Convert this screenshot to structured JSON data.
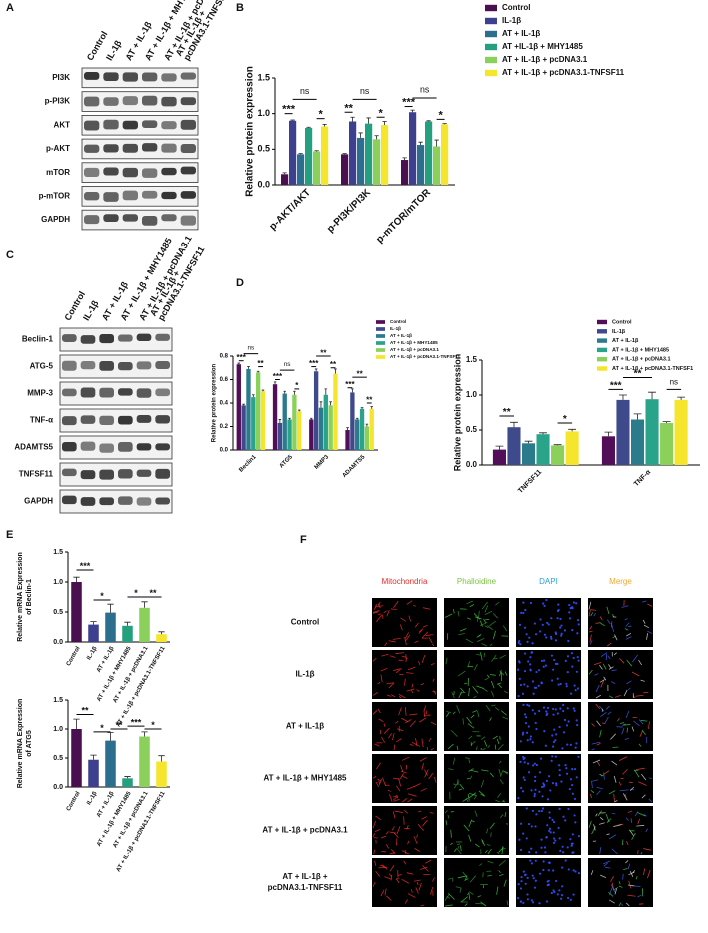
{
  "panel_labels": [
    "A",
    "B",
    "C",
    "D",
    "E",
    "F"
  ],
  "blot_a": {
    "lanes": [
      "Control",
      "IL-1β",
      "AT + IL-1β",
      "AT + IL-1β + MHY1485",
      "AT + IL-1β + pcDNA3.1",
      [
        "AT + IL-1β +",
        "pcDNA3.1-TNFSF11"
      ]
    ],
    "rows": [
      "PI3K",
      "p-PI3K",
      "AKT",
      "p-AKT",
      "mTOR",
      "p-mTOR",
      "GAPDH"
    ]
  },
  "blot_c": {
    "lanes": [
      "Control",
      "IL-1β",
      "AT + IL-1β",
      "AT + IL-1β + MHY1485",
      "AT + IL-1β + pcDNA3.1",
      [
        "AT + IL-1β +",
        "pcDNA3.1-TNFSF11"
      ]
    ],
    "rows": [
      "Beclin-1",
      "ATG-5",
      "MMP-3",
      "TNF-α",
      "ADAMTS5",
      "TNFSF11",
      "GAPDH"
    ]
  },
  "microscopy": {
    "columns": [
      "Mitochondria",
      "Phalloidine",
      "DAPI",
      "Merge"
    ],
    "column_colors": [
      "#e0302a",
      "#7cc242",
      "#2aa0d8",
      "#f0a830"
    ],
    "rows": [
      "Control",
      "IL-1β",
      "AT + IL-1β",
      "AT + IL-1β + MHY1485",
      "AT + IL-1β + pcDNA3.1",
      [
        "AT + IL-1β +",
        "pcDNA3.1-TNFSF11"
      ]
    ]
  },
  "chart_data": [
    {
      "type": "bar",
      "ylabel": "Relative protein expression",
      "categories": [
        "p-AKT/AKT",
        "p-PI3K/PI3K",
        "p-mTOR/mTOR"
      ],
      "series": [
        {
          "name": "Control",
          "color": "#4a0f4f",
          "values": [
            0.15,
            0.43,
            0.35
          ],
          "errors": [
            0.02,
            0.01,
            0.03
          ]
        },
        {
          "name": "IL-1β",
          "color": "#3d3f8f",
          "values": [
            0.9,
            0.89,
            1.02
          ],
          "errors": [
            0.01,
            0.06,
            0.03
          ]
        },
        {
          "name": "AT + IL-1β",
          "color": "#2c6e8e",
          "values": [
            0.43,
            0.66,
            0.56
          ],
          "errors": [
            0.01,
            0.07,
            0.04
          ]
        },
        {
          "name": "AT +IL-1β + MHY1485",
          "color": "#25a07f",
          "values": [
            0.8,
            0.86,
            0.89
          ],
          "errors": [
            0.01,
            0.08,
            0.01
          ]
        },
        {
          "name": "AT + IL-1β + pcDNA3.1",
          "color": "#8bd05a",
          "values": [
            0.47,
            0.64,
            0.54
          ],
          "errors": [
            0.01,
            0.05,
            0.09
          ]
        },
        {
          "name": "AT + IL-1β + pcDNA3.1-TNFSF11",
          "color": "#f5e52c",
          "values": [
            0.82,
            0.84,
            0.85
          ],
          "errors": [
            0.03,
            0.05,
            0.01
          ]
        }
      ],
      "ylim": [
        0,
        1.5
      ],
      "yticks": [
        {
          "value": 0,
          "label": "0.0"
        },
        {
          "value": 0.5,
          "label": "0.5"
        },
        {
          "value": 1,
          "label": "1.0"
        },
        {
          "value": 1.5,
          "label": "1.5"
        }
      ],
      "annotations": [
        "***",
        "ns",
        "*",
        "**",
        "ns",
        "*",
        "***",
        "ns",
        "*"
      ]
    },
    {
      "type": "bar",
      "ylabel": "Relative protein expression",
      "categories": [
        "Beclin1",
        "ATG5",
        "MMP3",
        "ADAMTS5"
      ],
      "series": [
        {
          "name": "Control",
          "color": "#520e58",
          "values": [
            0.73,
            0.56,
            0.26,
            0.17
          ],
          "errors": [
            0.01,
            0.02,
            0.01,
            0.02
          ]
        },
        {
          "name": "IL-1β",
          "color": "#3e4a8c",
          "values": [
            0.38,
            0.23,
            0.67,
            0.49
          ],
          "errors": [
            0.01,
            0.03,
            0.02,
            0.03
          ]
        },
        {
          "name": "AT + IL-1β",
          "color": "#2b7b8c",
          "values": [
            0.69,
            0.48,
            0.36,
            0.26
          ],
          "errors": [
            0.02,
            0.02,
            0.05,
            0.01
          ]
        },
        {
          "name": "AT + IL-1β + MHY1485",
          "color": "#2aa38b",
          "values": [
            0.45,
            0.26,
            0.47,
            0.35
          ],
          "errors": [
            0.02,
            0.01,
            0.05,
            0.01
          ]
        },
        {
          "name": "AT + IL-1β + pcDNA3.1",
          "color": "#8bd05a",
          "values": [
            0.66,
            0.47,
            0.38,
            0.2
          ],
          "errors": [
            0.01,
            0.03,
            0.03,
            0.02
          ]
        },
        {
          "name": "AT + IL-1β + pcDNA3.1-TNFSF11",
          "color": "#f5e52c",
          "values": [
            0.5,
            0.33,
            0.65,
            0.35
          ],
          "errors": [
            0.01,
            0.01,
            0.04,
            0.02
          ]
        }
      ],
      "ylim": [
        0,
        0.8
      ],
      "yticks": [
        {
          "value": 0,
          "label": "0.0"
        },
        {
          "value": 0.2,
          "label": "0.2"
        },
        {
          "value": 0.4,
          "label": "0.4"
        },
        {
          "value": 0.6,
          "label": "0.6"
        },
        {
          "value": 0.8,
          "label": "0.8"
        }
      ],
      "annotations": [
        "***",
        "ns",
        "**",
        "***",
        "ns",
        "*",
        "***",
        "**",
        "**",
        "***",
        "**",
        "**"
      ]
    },
    {
      "type": "bar",
      "ylabel": "Relative protein expression",
      "categories": [
        "TNFSF11",
        "TNF-α"
      ],
      "series": [
        {
          "name": "Control",
          "color": "#520e58",
          "values": [
            0.22,
            0.41
          ],
          "errors": [
            0.05,
            0.06
          ]
        },
        {
          "name": "IL-1β",
          "color": "#3e4a8c",
          "values": [
            0.54,
            0.93
          ],
          "errors": [
            0.07,
            0.07
          ]
        },
        {
          "name": "AT + IL-1β",
          "color": "#2b7b8c",
          "values": [
            0.31,
            0.65
          ],
          "errors": [
            0.03,
            0.08
          ]
        },
        {
          "name": "AT + IL-1β + MHY1485",
          "color": "#2aa38b",
          "values": [
            0.44,
            0.94
          ],
          "errors": [
            0.02,
            0.1
          ]
        },
        {
          "name": "AT + IL-1β + pcDNA3.1",
          "color": "#8bd05a",
          "values": [
            0.28,
            0.6
          ],
          "errors": [
            0.01,
            0.02
          ]
        },
        {
          "name": "AT + IL-1β + pcDNA3.1-TNFSF1",
          "color": "#f5e52c",
          "values": [
            0.48,
            0.93
          ],
          "errors": [
            0.03,
            0.04
          ]
        }
      ],
      "ylim": [
        0,
        1.5
      ],
      "yticks": [
        {
          "value": 0,
          "label": "0.0"
        },
        {
          "value": 0.5,
          "label": "0.5"
        },
        {
          "value": 1,
          "label": "1.0"
        },
        {
          "value": 1.5,
          "label": "1.5"
        }
      ],
      "annotations": [
        "**",
        "*",
        "***",
        "**",
        "ns"
      ]
    },
    {
      "type": "bar",
      "ylabel": [
        "Relative  mRNA Expression",
        "of Beclin-1"
      ],
      "categories": [
        "Control",
        "IL-1β",
        "AT + IL-1β",
        "AT + IL-1β + MHY1485",
        "AT + IL-1β + pcDNA3.1",
        "AT + IL-1β + pcDNA3.1-TNFSF11"
      ],
      "colors": [
        "#4a0f4f",
        "#3d3f8f",
        "#2c6e8e",
        "#25a07f",
        "#8bd05a",
        "#f5e52c"
      ],
      "values": [
        1.0,
        0.29,
        0.49,
        0.27,
        0.57,
        0.13
      ],
      "errors": [
        0.08,
        0.05,
        0.14,
        0.06,
        0.1,
        0.04
      ],
      "ylim": [
        0,
        1.5
      ],
      "yticks": [
        {
          "value": 0,
          "label": "0.0"
        },
        {
          "value": 0.5,
          "label": "0.5"
        },
        {
          "value": 1,
          "label": "1.0"
        },
        {
          "value": 1.5,
          "label": "1.5"
        }
      ],
      "annotations": [
        "***",
        "*",
        "*",
        "**"
      ]
    },
    {
      "type": "bar",
      "ylabel": [
        "Relative  mRNA Expression",
        "of ATG5"
      ],
      "categories": [
        "Control",
        "IL-1β",
        "AT + IL-1β",
        "AT + IL-1β + MHY1485",
        "AT + IL-1β + pcDNA3.1",
        "AT + IL-1β + pcDNA3.1-TNFSF11"
      ],
      "colors": [
        "#4a0f4f",
        "#3d3f8f",
        "#2c6e8e",
        "#25a07f",
        "#8bd05a",
        "#f5e52c"
      ],
      "values": [
        1.0,
        0.47,
        0.8,
        0.15,
        0.87,
        0.44
      ],
      "errors": [
        0.17,
        0.08,
        0.14,
        0.03,
        0.08,
        0.1
      ],
      "ylim": [
        0,
        1.5
      ],
      "yticks": [
        {
          "value": 0,
          "label": "0.0"
        },
        {
          "value": 0.5,
          "label": "0.5"
        },
        {
          "value": 1,
          "label": "1.0"
        },
        {
          "value": 1.5,
          "label": "1.5"
        }
      ],
      "annotations": [
        "**",
        "*",
        "**",
        "***",
        "*"
      ]
    }
  ]
}
